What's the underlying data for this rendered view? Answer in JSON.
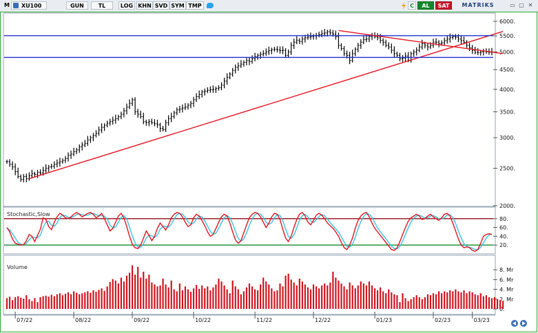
{
  "toolbar": {
    "mode": "M",
    "symbol": "XU100",
    "buttons": [
      "GUN",
      "TL",
      "LOG",
      "KHN",
      "SVD",
      "SYM",
      "TMP"
    ],
    "c_label": "C",
    "buy_label": "AL",
    "sell_label": "SAT",
    "brand": "MATRIKS",
    "window_glyphs": [
      "▭",
      "▢",
      "✕"
    ]
  },
  "colors": {
    "price_bars": "#000000",
    "trendline": "#e0141e",
    "resistance": "#1f2fd0",
    "stoch_k": "#e0141e",
    "stoch_d": "#39c3e0",
    "upper_band": "#8b0d14",
    "lower_band": "#138a2c",
    "volume": "#d0141e",
    "frame": "#2aa830"
  },
  "chart_data": [
    {
      "panel": "price",
      "type": "ohlc",
      "title": "",
      "y_ticks": [
        "6000.",
        "5500.",
        "5000.",
        "4500.",
        "4000.",
        "3500.",
        "3000.",
        "2500.",
        "2000."
      ],
      "ylim": [
        2000,
        6200
      ],
      "scale": "log",
      "x_ticks": [
        "07/22",
        "08/22",
        "09/22",
        "10/22",
        "11/22",
        "12/22",
        "01/23",
        "02/23",
        "03/23"
      ],
      "closes": [
        2600,
        2560,
        2520,
        2450,
        2380,
        2340,
        2380,
        2350,
        2390,
        2420,
        2410,
        2440,
        2430,
        2470,
        2500,
        2520,
        2530,
        2560,
        2580,
        2600,
        2620,
        2650,
        2700,
        2720,
        2760,
        2790,
        2840,
        2870,
        2900,
        2960,
        3000,
        3040,
        3080,
        3140,
        3190,
        3230,
        3270,
        3300,
        3330,
        3360,
        3400,
        3450,
        3520,
        3600,
        3680,
        3760,
        3500,
        3450,
        3400,
        3300,
        3280,
        3300,
        3280,
        3260,
        3240,
        3170,
        3150,
        3280,
        3360,
        3400,
        3480,
        3540,
        3560,
        3580,
        3600,
        3640,
        3680,
        3760,
        3830,
        3880,
        3940,
        3960,
        3980,
        3990,
        4000,
        4020,
        4040,
        4100,
        4200,
        4300,
        4380,
        4480,
        4560,
        4600,
        4650,
        4700,
        4750,
        4720,
        4800,
        4860,
        4900,
        4930,
        4960,
        5000,
        5040,
        5070,
        5080,
        5060,
        5040,
        5050,
        4900,
        5000,
        5200,
        5300,
        5360,
        5320,
        5400,
        5440,
        5460,
        5480,
        5500,
        5520,
        5540,
        5580,
        5600,
        5640,
        5600,
        5560,
        5480,
        5200,
        5100,
        4950,
        4900,
        4750,
        4950,
        5080,
        5200,
        5300,
        5380,
        5400,
        5480,
        5520,
        5480,
        5440,
        5360,
        5300,
        5200,
        5150,
        5050,
        4950,
        4900,
        4800,
        4820,
        4880,
        4760,
        4950,
        5000,
        5050,
        5150,
        5250,
        5200,
        5150,
        5200,
        5300,
        5300,
        5250,
        5280,
        5350,
        5400,
        5450,
        5480,
        5460,
        5400,
        5350,
        5300,
        5200,
        5120,
        5050,
        4990,
        4980,
        5000,
        5020,
        5000,
        4990,
        5000
      ],
      "lines": [
        {
          "name": "trend-support",
          "from": {
            "bar": 8,
            "value": 2350
          },
          "to": {
            "bar": 178,
            "value": 5650
          }
        },
        {
          "name": "resistance-upper",
          "value": 5510
        },
        {
          "name": "resistance-lower",
          "value": 4840
        },
        {
          "name": "triangle-upper",
          "from": {
            "bar": 119,
            "value": 5680
          },
          "to": {
            "bar": 178,
            "value": 4950
          }
        }
      ]
    },
    {
      "panel": "stochastic",
      "type": "line",
      "title": "Stochastic,Slow",
      "y_ticks": [
        "80.",
        "60.",
        "40.",
        "20."
      ],
      "ylim": [
        0,
        100
      ],
      "bands": [
        80,
        20
      ],
      "series": [
        {
          "name": "",
          "values": [
            60,
            50,
            34,
            24,
            22,
            20,
            21,
            30,
            44,
            40,
            28,
            42,
            56,
            82,
            78,
            62,
            55,
            72,
            84,
            92,
            88,
            82,
            80,
            84,
            90,
            94,
            90,
            84,
            88,
            92,
            94,
            90,
            82,
            86,
            92,
            80,
            66,
            52,
            58,
            72,
            86,
            92,
            82,
            62,
            40,
            22,
            14,
            12,
            20,
            36,
            52,
            42,
            30,
            40,
            58,
            70,
            62,
            54,
            66,
            82,
            90,
            94,
            92,
            84,
            72,
            62,
            66,
            82,
            90,
            86,
            76,
            64,
            50,
            40,
            44,
            58,
            72,
            84,
            90,
            86,
            70,
            50,
            32,
            24,
            30,
            48,
            66,
            82,
            90,
            94,
            92,
            84,
            72,
            60,
            70,
            84,
            92,
            90,
            78,
            56,
            36,
            28,
            40,
            60,
            78,
            90,
            94,
            86,
            72,
            66,
            76,
            88,
            92,
            88,
            80,
            70,
            64,
            58,
            50,
            40,
            26,
            14,
            10,
            20,
            36,
            58,
            76,
            86,
            92,
            94,
            84,
            70,
            58,
            50,
            42,
            34,
            26,
            18,
            10,
            8,
            14,
            28,
            44,
            60,
            74,
            82,
            86,
            90,
            86,
            78,
            80,
            86,
            90,
            84,
            80,
            76,
            82,
            90,
            92,
            86,
            70,
            52,
            34,
            20,
            14,
            16,
            14,
            8,
            6,
            10,
            24,
            40,
            44,
            46,
            44
          ]
        },
        {
          "name": "",
          "values": [
            58,
            55,
            46,
            36,
            26,
            22,
            21,
            24,
            32,
            38,
            37,
            37,
            42,
            60,
            72,
            74,
            65,
            63,
            70,
            83,
            88,
            87,
            83,
            82,
            85,
            89,
            91,
            89,
            87,
            88,
            91,
            92,
            89,
            86,
            87,
            86,
            79,
            66,
            59,
            61,
            72,
            83,
            87,
            79,
            61,
            41,
            25,
            16,
            15,
            23,
            36,
            43,
            41,
            37,
            43,
            56,
            63,
            62,
            61,
            67,
            79,
            89,
            92,
            90,
            83,
            73,
            67,
            70,
            79,
            86,
            84,
            75,
            63,
            51,
            45,
            47,
            58,
            71,
            82,
            87,
            82,
            69,
            51,
            35,
            29,
            34,
            48,
            65,
            79,
            89,
            92,
            90,
            83,
            72,
            67,
            71,
            82,
            89,
            87,
            75,
            57,
            40,
            35,
            43,
            59,
            76,
            87,
            90,
            84,
            75,
            71,
            77,
            85,
            89,
            87,
            79,
            71,
            64,
            57,
            49,
            39,
            27,
            17,
            15,
            22,
            38,
            57,
            73,
            85,
            91,
            90,
            83,
            71,
            59,
            50,
            42,
            34,
            26,
            18,
            12,
            11,
            17,
            29,
            44,
            59,
            72,
            81,
            86,
            88,
            85,
            81,
            82,
            86,
            87,
            84,
            80,
            79,
            83,
            88,
            89,
            83,
            69,
            52,
            36,
            23,
            17,
            15,
            13,
            10,
            9,
            15,
            25,
            36,
            43,
            45
          ]
        }
      ]
    },
    {
      "panel": "volume",
      "type": "bar",
      "title": "Volume",
      "y_ticks": [
        "8. Mr",
        "6. Mr",
        "4. Mr",
        "2. Mr",
        "0."
      ],
      "ylim": [
        0,
        9
      ],
      "values": [
        2.2,
        2.5,
        1.8,
        2.4,
        2.6,
        2.3,
        2.1,
        2.8,
        2.0,
        1.6,
        2.2,
        1.4,
        2.4,
        2.6,
        2.7,
        2.5,
        2.9,
        2.6,
        3.0,
        3.2,
        2.8,
        3.1,
        3.4,
        3.0,
        3.6,
        3.3,
        3.0,
        3.2,
        3.4,
        3.6,
        3.3,
        3.8,
        3.5,
        3.9,
        4.2,
        3.7,
        4.6,
        5.5,
        6.1,
        5.8,
        5.2,
        6.4,
        5.6,
        6.8,
        7.4,
        8.9,
        7.0,
        8.6,
        6.4,
        7.6,
        6.2,
        7.0,
        5.4,
        5.0,
        4.6,
        4.8,
        6.2,
        5.0,
        4.4,
        5.8,
        4.0,
        3.6,
        5.2,
        3.8,
        4.6,
        4.0,
        3.5,
        4.2,
        4.9,
        4.1,
        4.8,
        4.2,
        4.6,
        3.8,
        4.4,
        5.0,
        6.2,
        5.6,
        4.8,
        4.0,
        3.2,
        5.8,
        4.6,
        4.0,
        3.0,
        3.6,
        4.4,
        5.2,
        4.6,
        4.0,
        3.8,
        5.0,
        6.4,
        5.6,
        5.0,
        4.2,
        3.6,
        3.8,
        5.2,
        4.6,
        6.8,
        7.2,
        6.0,
        5.4,
        4.8,
        6.2,
        5.6,
        5.0,
        4.4,
        4.0,
        5.0,
        4.6,
        4.2,
        4.8,
        5.2,
        4.8,
        5.4,
        7.6,
        6.4,
        5.8,
        5.2,
        4.6,
        4.0,
        5.4,
        4.8,
        4.2,
        4.8,
        5.6,
        5.2,
        4.8,
        5.6,
        4.8,
        4.2,
        3.8,
        4.4,
        3.6,
        3.2,
        4.0,
        3.4,
        3.0,
        2.8,
        1.4,
        3.2,
        2.2,
        1.6,
        2.0,
        2.4,
        2.8,
        2.4,
        2.0,
        2.4,
        3.0,
        2.8,
        3.2,
        3.0,
        3.6,
        3.2,
        3.6,
        3.4,
        3.8,
        3.6,
        4.0,
        3.6,
        3.4,
        3.8,
        3.2,
        3.6,
        3.4,
        3.0,
        2.8,
        3.2,
        2.6,
        2.8,
        2.4,
        2.2,
        2.4,
        2.0,
        1.8,
        1.6
      ]
    }
  ]
}
